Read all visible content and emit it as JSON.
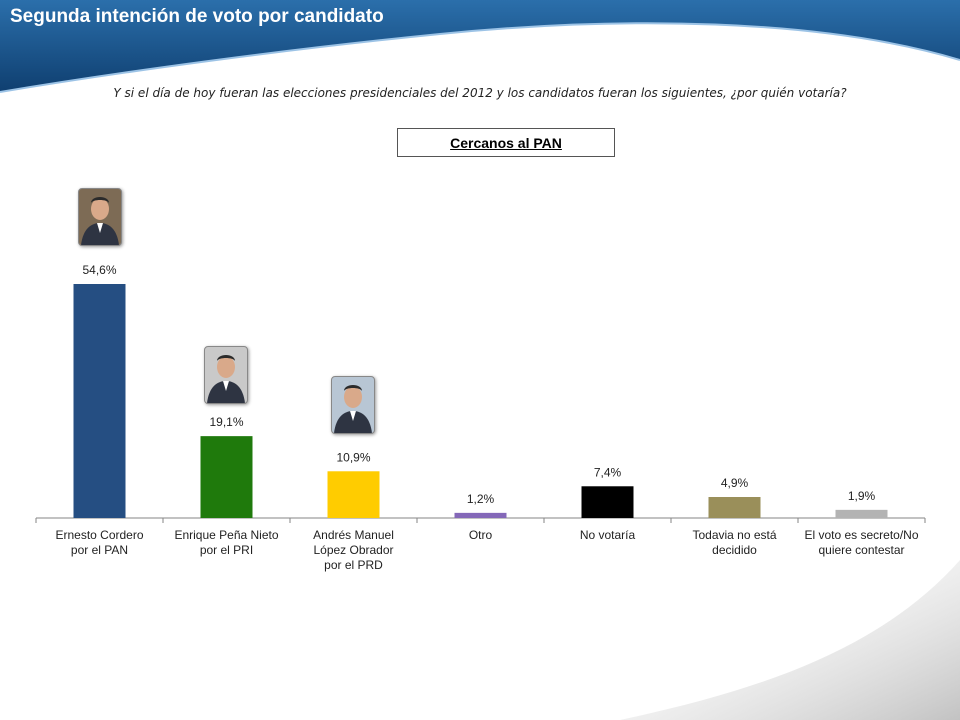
{
  "slide": {
    "title": "Segunda intención de voto por candidato",
    "question": "Y si el día de hoy fueran las elecciones presidenciales del 2012 y los candidatos fueran los siguientes, ¿por quién votaría?",
    "segment": "Cercanos al PAN"
  },
  "colors": {
    "banner": "#1c5a94",
    "banner_dark": "#0f3f70"
  },
  "photos": [
    {
      "name": "Ernesto Cordero",
      "icon": "portrait-photo-icon",
      "bg": "#7d6b55"
    },
    {
      "name": "Enrique Peña Nieto",
      "icon": "portrait-photo-icon",
      "bg": "#c9c9c9"
    },
    {
      "name": "Andrés Manuel López Obrador",
      "icon": "portrait-photo-icon",
      "bg": "#b8c6d4"
    }
  ],
  "chart_data": {
    "type": "bar",
    "title": "",
    "xlabel": "",
    "ylabel": "",
    "ylim": [
      0,
      60
    ],
    "grid": false,
    "legend": "none",
    "categories": [
      [
        "Ernesto Cordero",
        "por el PAN"
      ],
      [
        "Enrique Peña Nieto",
        "por el PRI"
      ],
      [
        "Andrés Manuel",
        "López Obrador",
        "por el PRD"
      ],
      [
        "Otro"
      ],
      [
        "No votaría"
      ],
      [
        "Todavia no está",
        "decidido"
      ],
      [
        "El voto es secreto/No",
        "quiere contestar"
      ]
    ],
    "values": [
      54.6,
      19.1,
      10.9,
      1.2,
      7.4,
      4.9,
      1.9
    ],
    "value_labels": [
      "54,6%",
      "19,1%",
      "10,9%",
      "1,2%",
      "7,4%",
      "4,9%",
      "1,9%"
    ],
    "colors": [
      "#254e82",
      "#1f7a0c",
      "#ffcc00",
      "#8468b8",
      "#000000",
      "#9a8f5a",
      "#b3b3b3"
    ]
  }
}
